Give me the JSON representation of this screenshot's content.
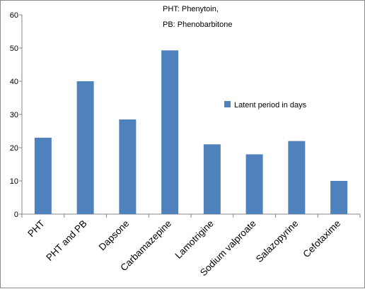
{
  "chart_data": {
    "type": "bar",
    "categories": [
      "PHT",
      "PHT and PB",
      "Dapsone",
      "Carbamazepine",
      "Lamotrigine",
      "Sodium valproate",
      "Salazopyrine",
      "Cefotaxime"
    ],
    "series": [
      {
        "name": "Latent period in days",
        "values": [
          23,
          40,
          28.5,
          49.3,
          21,
          18,
          22,
          10
        ],
        "color": "#4f81bd"
      }
    ],
    "ylim": [
      0,
      60
    ],
    "yticks": [
      0,
      10,
      20,
      30,
      40,
      50,
      60
    ],
    "grid": false,
    "legend_position": "right",
    "notes": [
      "PHT: Phenytoin,",
      "PB: Phenobarbitone"
    ]
  }
}
